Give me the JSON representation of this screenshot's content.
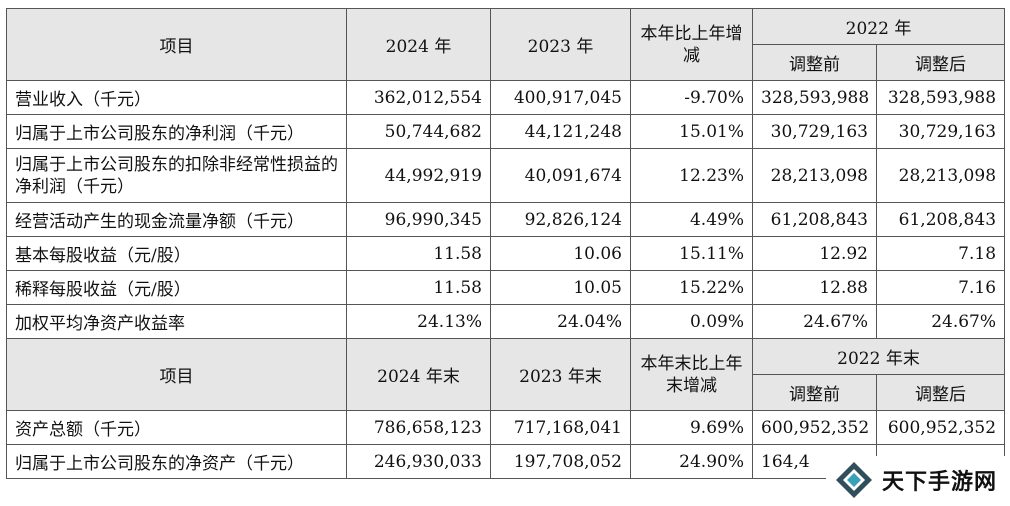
{
  "header1": {
    "item": "项目",
    "y2024": "2024 年",
    "y2023": "2023 年",
    "change": "本年比上年增减",
    "y2022": "2022 年",
    "before": "调整前",
    "after": "调整后"
  },
  "rows1": [
    {
      "label": "营业收入（千元）",
      "v2024": "362,012,554",
      "v2023": "400,917,045",
      "chg": "-9.70%",
      "b": "328,593,988",
      "a": "328,593,988"
    },
    {
      "label": "归属于上市公司股东的净利润（千元）",
      "v2024": "50,744,682",
      "v2023": "44,121,248",
      "chg": "15.01%",
      "b": "30,729,163",
      "a": "30,729,163"
    },
    {
      "label": "归属于上市公司股东的扣除非经常性损益的净利润（千元）",
      "v2024": "44,992,919",
      "v2023": "40,091,674",
      "chg": "12.23%",
      "b": "28,213,098",
      "a": "28,213,098"
    },
    {
      "label": "经营活动产生的现金流量净额（千元）",
      "v2024": "96,990,345",
      "v2023": "92,826,124",
      "chg": "4.49%",
      "b": "61,208,843",
      "a": "61,208,843"
    },
    {
      "label": "基本每股收益（元/股）",
      "v2024": "11.58",
      "v2023": "10.06",
      "chg": "15.11%",
      "b": "12.92",
      "a": "7.18"
    },
    {
      "label": "稀释每股收益（元/股）",
      "v2024": "11.58",
      "v2023": "10.05",
      "chg": "15.22%",
      "b": "12.88",
      "a": "7.16"
    },
    {
      "label": "加权平均净资产收益率",
      "v2024": "24.13%",
      "v2023": "24.04%",
      "chg": "0.09%",
      "b": "24.67%",
      "a": "24.67%"
    }
  ],
  "header2": {
    "item": "项目",
    "y2024": "2024 年末",
    "y2023": "2023 年末",
    "change": "本年末比上年末增减",
    "y2022": "2022 年末",
    "before": "调整前",
    "after": "调整后"
  },
  "rows2": [
    {
      "label": "资产总额（千元）",
      "v2024": "786,658,123",
      "v2023": "717,168,041",
      "chg": "9.69%",
      "b": "600,952,352",
      "a": "600,952,352"
    },
    {
      "label": "归属于上市公司股东的净资产（千元）",
      "v2024": "246,930,033",
      "v2023": "197,708,052",
      "chg": "24.90%",
      "b": "164,4",
      "a": ""
    }
  ],
  "watermark": {
    "text": "天下手游网",
    "icon": "diamond-logo-icon"
  }
}
